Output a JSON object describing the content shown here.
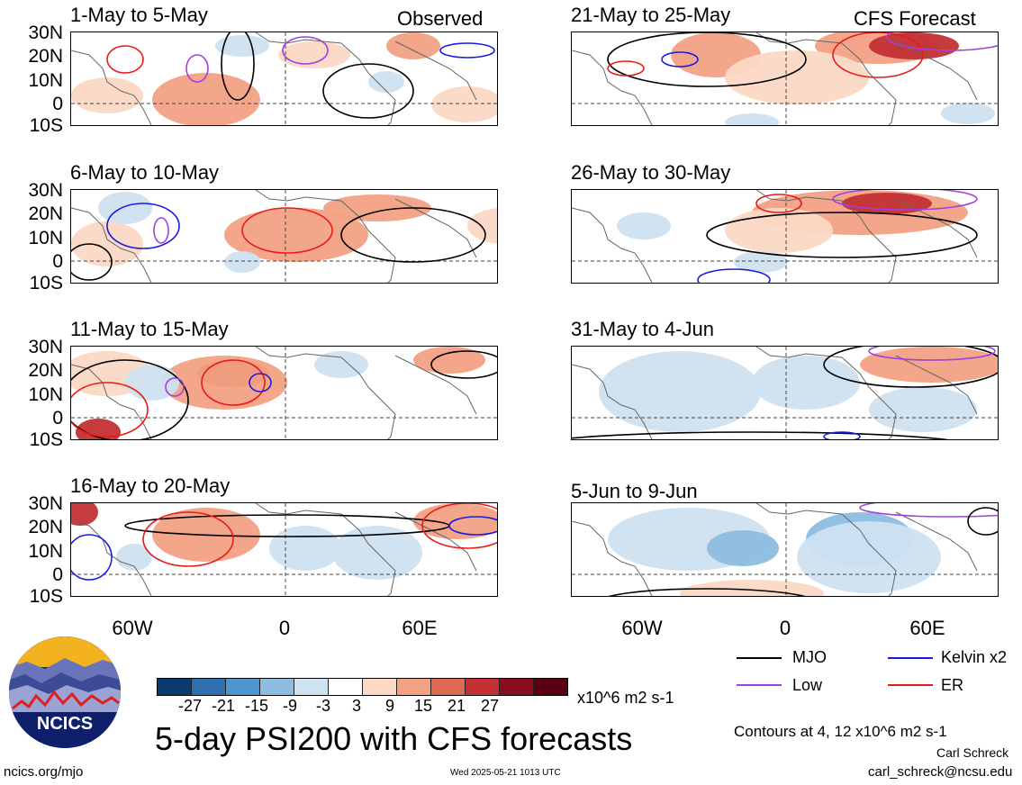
{
  "panels": [
    {
      "title": "1-May to 5-May",
      "tag": "Observed"
    },
    {
      "title": "6-May to 10-May",
      "tag": ""
    },
    {
      "title": "11-May to 15-May",
      "tag": ""
    },
    {
      "title": "16-May to 20-May",
      "tag": ""
    },
    {
      "title": "21-May to 25-May",
      "tag": "CFS Forecast"
    },
    {
      "title": "26-May to 30-May",
      "tag": ""
    },
    {
      "title": "31-May to 4-Jun",
      "tag": ""
    },
    {
      "title": "5-Jun to 9-Jun",
      "tag": ""
    }
  ],
  "lat_labels": [
    "30N",
    "20N",
    "10N",
    "0",
    "10S"
  ],
  "lon_labels": [
    "60W",
    "0",
    "60E"
  ],
  "legend": {
    "mjo": "MJO",
    "kelvin": "Kelvin x2",
    "low": "Low",
    "er": "ER",
    "colors": {
      "mjo": "#000000",
      "kelvin": "#1a1adf",
      "low": "#a040e0",
      "er": "#e81a1a"
    }
  },
  "colorbar": {
    "ticks": [
      "-27",
      "-21",
      "-15",
      "-9",
      "-3",
      "3",
      "9",
      "15",
      "21",
      "27"
    ],
    "units": "x10^6 m2 s-1",
    "colors": [
      "#0b3a6e",
      "#2f6fb0",
      "#4d95cb",
      "#8cbde0",
      "#cfe2f0",
      "#ffffff",
      "#fbd9c5",
      "#f2a183",
      "#de6a52",
      "#c23034",
      "#8a0d20",
      "#5a0012"
    ]
  },
  "main_title": "5-day PSI200 with CFS forecasts",
  "contours_note": "Contours at 4, 12 x10^6 m2 s-1",
  "author": "Carl Schreck",
  "email": "carl_schreck@ncsu.edu",
  "site": "ncics.org/mjo",
  "timestamp": "Wed 2025-05-21 1013 UTC",
  "logo_text": "NCICS"
}
